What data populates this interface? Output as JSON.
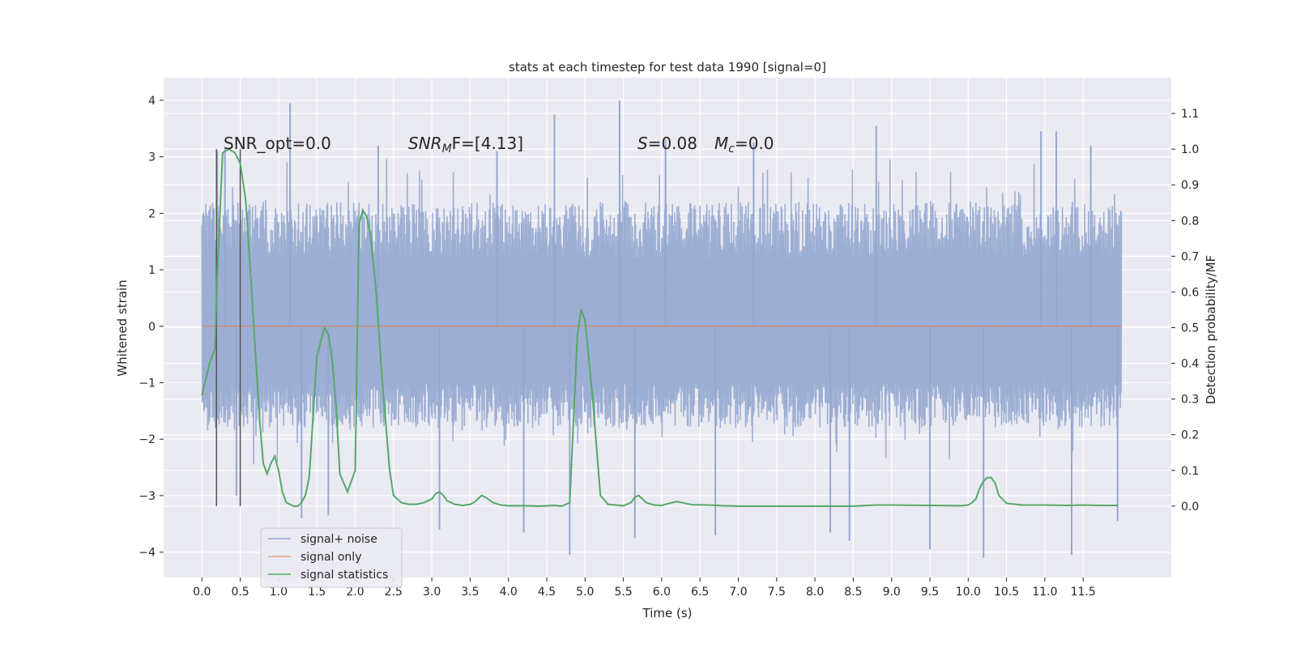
{
  "chart_data": {
    "type": "line",
    "title": "stats at each timestep for test data 1990 [signal=0]",
    "xlabel": "Time (s)",
    "ylabel_left": "Whitened strain",
    "ylabel_right": "Detection probability/MF",
    "xlim": [
      -0.5,
      12.65
    ],
    "ylim_left": [
      -4.45,
      4.4
    ],
    "ylim_right": [
      -0.2,
      1.2
    ],
    "x_ticks": [
      0.0,
      0.5,
      1.0,
      1.5,
      2.0,
      2.5,
      3.0,
      3.5,
      4.0,
      4.5,
      5.0,
      5.5,
      6.0,
      6.5,
      7.0,
      7.5,
      8.0,
      8.5,
      9.0,
      9.5,
      10.0,
      10.5,
      11.0,
      11.5
    ],
    "x_tick_labels": [
      "0.0",
      "0.5",
      "1.0",
      "1.5",
      "2.0",
      "2.5",
      "3.0",
      "3.5",
      "4.0",
      "4.5",
      "5.0",
      "5.5",
      "6.0",
      "6.5",
      "7.0",
      "7.5",
      "8.0",
      "8.5",
      "9.0",
      "9.5",
      "10.0",
      "10.5",
      "11.0",
      "11.5"
    ],
    "y_left_ticks": [
      4,
      3,
      2,
      1,
      0,
      -1,
      -2,
      -3,
      -4
    ],
    "y_left_tick_labels": [
      "4",
      "3",
      "2",
      "1",
      "0",
      "−1",
      "−2",
      "−3",
      "−4"
    ],
    "y_right_ticks": [
      1.1,
      1.0,
      0.9,
      0.8,
      0.7,
      0.6,
      0.5,
      0.4,
      0.3,
      0.2,
      0.1,
      0.0
    ],
    "y_right_tick_labels": [
      "1.1",
      "1.0",
      "0.9",
      "0.8",
      "0.7",
      "0.6",
      "0.5",
      "0.4",
      "0.3",
      "0.2",
      "0.1",
      "0.0"
    ],
    "grid": true,
    "legend_position": "lower-left",
    "annotations": {
      "snr_opt": "SNR_opt=0.0",
      "snr_mf_main": "SNR",
      "snr_mf_sub": "M",
      "snr_mf_rest": "F=[4.13]",
      "s_label": "S",
      "s_rest": "=0.08",
      "mc_main": "M",
      "mc_sub": "c",
      "mc_rest": "=0.0"
    },
    "vertical_markers": [
      0.19,
      0.5
    ],
    "series": [
      {
        "name": "signal+ noise",
        "axis": "left",
        "color": "#94a7cf",
        "x_range": [
          0.0,
          12.0
        ],
        "envelope_typical": [
          -1.8,
          2.2
        ],
        "spikes": [
          {
            "x": 0.2,
            "y": 3.1
          },
          {
            "x": 0.3,
            "y": 3.15
          },
          {
            "x": 0.45,
            "y": -3.0
          },
          {
            "x": 1.15,
            "y": 3.95
          },
          {
            "x": 1.3,
            "y": -3.4
          },
          {
            "x": 1.65,
            "y": -3.35
          },
          {
            "x": 2.3,
            "y": 3.2
          },
          {
            "x": 3.1,
            "y": -3.6
          },
          {
            "x": 3.85,
            "y": 3.1
          },
          {
            "x": 4.2,
            "y": -3.65
          },
          {
            "x": 4.6,
            "y": 3.75
          },
          {
            "x": 4.8,
            "y": -4.05
          },
          {
            "x": 5.45,
            "y": 4.0
          },
          {
            "x": 5.65,
            "y": -3.75
          },
          {
            "x": 6.05,
            "y": 3.3
          },
          {
            "x": 6.7,
            "y": -3.7
          },
          {
            "x": 7.2,
            "y": 3.25
          },
          {
            "x": 8.2,
            "y": -3.65
          },
          {
            "x": 8.45,
            "y": -3.8
          },
          {
            "x": 8.8,
            "y": 3.55
          },
          {
            "x": 9.5,
            "y": -3.95
          },
          {
            "x": 10.2,
            "y": -4.1
          },
          {
            "x": 10.95,
            "y": 3.45
          },
          {
            "x": 11.15,
            "y": 3.45
          },
          {
            "x": 11.35,
            "y": -4.05
          },
          {
            "x": 11.6,
            "y": 3.2
          },
          {
            "x": 11.95,
            "y": -3.45
          }
        ]
      },
      {
        "name": "signal only",
        "axis": "left",
        "color": "#dd8452",
        "x": [
          0.0,
          12.0
        ],
        "y": [
          0.0,
          0.0
        ]
      },
      {
        "name": "signal statistics",
        "axis": "right",
        "color": "#55a868",
        "x": [
          0.0,
          0.1,
          0.17,
          0.2,
          0.27,
          0.35,
          0.43,
          0.5,
          0.57,
          0.65,
          0.75,
          0.8,
          0.85,
          0.9,
          0.95,
          1.0,
          1.05,
          1.1,
          1.2,
          1.25,
          1.3,
          1.35,
          1.4,
          1.5,
          1.6,
          1.65,
          1.7,
          1.75,
          1.8,
          1.9,
          2.0,
          2.05,
          2.1,
          2.15,
          2.2,
          2.27,
          2.35,
          2.45,
          2.5,
          2.6,
          2.7,
          2.8,
          2.9,
          3.0,
          3.05,
          3.1,
          3.15,
          3.2,
          3.3,
          3.4,
          3.5,
          3.55,
          3.6,
          3.65,
          3.7,
          3.8,
          3.9,
          4.0,
          4.2,
          4.4,
          4.6,
          4.7,
          4.8,
          4.9,
          4.95,
          5.0,
          5.1,
          5.2,
          5.3,
          5.4,
          5.5,
          5.6,
          5.65,
          5.7,
          5.75,
          5.8,
          5.9,
          6.0,
          6.1,
          6.2,
          6.3,
          6.4,
          6.6,
          6.8,
          7.0,
          7.5,
          8.0,
          8.5,
          8.8,
          9.0,
          9.5,
          9.9,
          10.0,
          10.05,
          10.1,
          10.15,
          10.2,
          10.25,
          10.3,
          10.35,
          10.4,
          10.5,
          10.7,
          11.0,
          11.3,
          11.5,
          11.7,
          11.95
        ],
        "y": [
          0.31,
          0.4,
          0.44,
          0.65,
          0.99,
          1.0,
          0.99,
          0.96,
          0.86,
          0.6,
          0.25,
          0.12,
          0.09,
          0.12,
          0.14,
          0.1,
          0.04,
          0.01,
          0.0,
          0.0,
          0.01,
          0.03,
          0.08,
          0.42,
          0.5,
          0.48,
          0.41,
          0.28,
          0.09,
          0.04,
          0.1,
          0.79,
          0.83,
          0.81,
          0.76,
          0.61,
          0.36,
          0.1,
          0.03,
          0.01,
          0.005,
          0.005,
          0.01,
          0.02,
          0.035,
          0.04,
          0.03,
          0.015,
          0.005,
          0.002,
          0.005,
          0.01,
          0.02,
          0.03,
          0.025,
          0.01,
          0.003,
          0.001,
          0.001,
          0.0,
          0.002,
          0.0,
          0.01,
          0.48,
          0.55,
          0.52,
          0.3,
          0.03,
          0.005,
          0.003,
          0.001,
          0.01,
          0.025,
          0.03,
          0.02,
          0.01,
          0.003,
          0.002,
          0.008,
          0.013,
          0.008,
          0.004,
          0.003,
          0.001,
          0.0,
          0.0,
          0.0,
          0.0,
          0.003,
          0.003,
          0.002,
          0.001,
          0.003,
          0.01,
          0.02,
          0.05,
          0.07,
          0.08,
          0.08,
          0.065,
          0.03,
          0.008,
          0.003,
          0.003,
          0.002,
          0.003,
          0.002,
          0.002
        ]
      }
    ]
  }
}
